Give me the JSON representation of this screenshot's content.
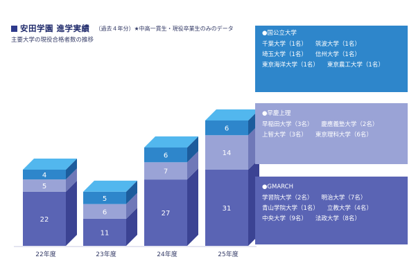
{
  "header": {
    "title": "安田学園 進学実績",
    "note": "（過去４年分）★中高一貫生・現役卒業生のみのデータ",
    "subtitle": "主要大学の現役合格者数の推移"
  },
  "colors": {
    "gmarch": "#5a64b4",
    "gmarch_side": "#3b4393",
    "gmarch_top": "#7b84c8",
    "soukei": "#9aa3d6",
    "soukei_side": "#6f78b8",
    "soukei_top": "#b9c0e6",
    "national": "#2e86cb",
    "national_side": "#1c5c9c",
    "national_top": "#52b7ee"
  },
  "chart_data": {
    "type": "bar",
    "stacked": true,
    "title": "主要大学の現役合格者数の推移",
    "categories": [
      "22年度",
      "23年度",
      "24年度",
      "25年度"
    ],
    "series": [
      {
        "name": "GMARCH",
        "values": [
          22,
          11,
          27,
          31
        ]
      },
      {
        "name": "早慶上理",
        "values": [
          5,
          6,
          7,
          14
        ]
      },
      {
        "name": "国公立大学",
        "values": [
          4,
          5,
          6,
          6
        ]
      }
    ],
    "xlabel": "",
    "ylabel": "",
    "ylim": [
      0,
      55
    ]
  },
  "legend_boxes": {
    "national": {
      "heading": "●国公立大学",
      "rows": [
        [
          "千葉大学（1名）",
          "筑波大学（1名）"
        ],
        [
          "埼玉大学（1名）",
          "信州大学（1名）"
        ],
        [
          "東京海洋大学（1名）",
          "東京農工大学（1名）"
        ]
      ]
    },
    "soukei": {
      "heading": "●早慶上理",
      "rows": [
        [
          "早稲田大学（3名）",
          "慶應義塾大学（2名）"
        ],
        [
          "上智大学（3名）",
          "東京理科大学（6名）"
        ]
      ]
    },
    "gmarch": {
      "heading": "●GMARCH",
      "rows": [
        [
          "学習院大学（2名）",
          "明治大学（7名）"
        ],
        [
          "青山学院大学（1名）",
          "立教大学（4名）"
        ],
        [
          "中央大学（9名）",
          "法政大学（8名）"
        ]
      ]
    }
  }
}
